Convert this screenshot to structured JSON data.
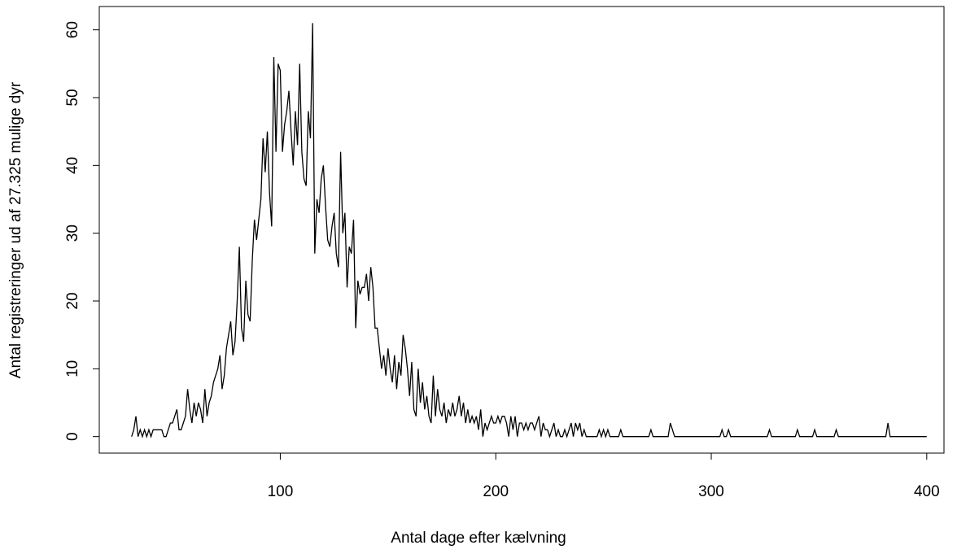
{
  "chart_data": {
    "type": "line",
    "xlabel": "Antal dage efter kælvning",
    "ylabel": "Antal registreringer ud af 27.325 mulige dyr",
    "color": "#000000",
    "xlim": [
      16,
      408
    ],
    "ylim": [
      -2.44,
      63.44
    ],
    "xticks": [
      100,
      200,
      300,
      400
    ],
    "yticks": [
      0,
      10,
      20,
      30,
      40,
      50,
      60
    ],
    "x": [
      31,
      32,
      33,
      34,
      35,
      36,
      37,
      38,
      39,
      40,
      41,
      42,
      43,
      44,
      45,
      46,
      47,
      48,
      49,
      50,
      51,
      52,
      53,
      54,
      55,
      56,
      57,
      58,
      59,
      60,
      61,
      62,
      63,
      64,
      65,
      66,
      67,
      68,
      69,
      70,
      71,
      72,
      73,
      74,
      75,
      76,
      77,
      78,
      79,
      80,
      81,
      82,
      83,
      84,
      85,
      86,
      87,
      88,
      89,
      90,
      91,
      92,
      93,
      94,
      95,
      96,
      97,
      98,
      99,
      100,
      101,
      102,
      103,
      104,
      105,
      106,
      107,
      108,
      109,
      110,
      111,
      112,
      113,
      114,
      115,
      116,
      117,
      118,
      119,
      120,
      121,
      122,
      123,
      124,
      125,
      126,
      127,
      128,
      129,
      130,
      131,
      132,
      133,
      134,
      135,
      136,
      137,
      138,
      139,
      140,
      141,
      142,
      143,
      144,
      145,
      146,
      147,
      148,
      149,
      150,
      151,
      152,
      153,
      154,
      155,
      156,
      157,
      158,
      159,
      160,
      161,
      162,
      163,
      164,
      165,
      166,
      167,
      168,
      169,
      170,
      171,
      172,
      173,
      174,
      175,
      176,
      177,
      178,
      179,
      180,
      181,
      182,
      183,
      184,
      185,
      186,
      187,
      188,
      189,
      190,
      191,
      192,
      193,
      194,
      195,
      196,
      197,
      198,
      199,
      200,
      201,
      202,
      203,
      204,
      205,
      206,
      207,
      208,
      209,
      210,
      211,
      212,
      213,
      214,
      215,
      216,
      217,
      218,
      219,
      220,
      221,
      222,
      223,
      224,
      225,
      226,
      227,
      228,
      229,
      230,
      231,
      232,
      233,
      234,
      235,
      236,
      237,
      238,
      239,
      240,
      241,
      242,
      243,
      244,
      245,
      246,
      247,
      248,
      249,
      250,
      251,
      252,
      253,
      254,
      255,
      256,
      257,
      258,
      259,
      260,
      271,
      272,
      273,
      280,
      281,
      282,
      283,
      304,
      305,
      306,
      307,
      308,
      309,
      326,
      327,
      328,
      339,
      340,
      341,
      347,
      348,
      349,
      357,
      358,
      359,
      381,
      382,
      383,
      400
    ],
    "values": [
      0,
      1,
      3,
      0,
      1,
      0,
      1,
      0,
      1,
      0,
      1,
      1,
      1,
      1,
      1,
      0,
      0,
      1,
      2,
      2,
      3,
      4,
      1,
      1,
      2,
      3,
      7,
      4,
      2,
      5,
      3,
      5,
      4,
      2,
      7,
      3,
      5,
      6,
      8,
      9,
      10,
      12,
      7,
      9,
      13,
      15,
      17,
      12,
      14,
      20,
      28,
      16,
      14,
      23,
      18,
      17,
      26,
      32,
      29,
      32,
      35,
      44,
      39,
      45,
      36,
      31,
      56,
      42,
      55,
      54,
      42,
      46,
      48,
      51,
      45,
      40,
      48,
      43,
      55,
      42,
      38,
      37,
      48,
      44,
      61,
      27,
      35,
      33,
      38,
      40,
      34,
      29,
      28,
      31,
      33,
      27,
      25,
      42,
      30,
      33,
      22,
      28,
      27,
      32,
      16,
      23,
      21,
      22,
      22,
      24,
      20,
      25,
      22,
      16,
      16,
      13,
      10,
      12,
      9,
      13,
      10,
      8,
      12,
      7,
      11,
      9,
      15,
      13,
      10,
      6,
      11,
      4,
      3,
      10,
      5,
      8,
      4,
      6,
      3,
      2,
      9,
      3,
      7,
      4,
      3,
      5,
      2,
      4,
      3,
      5,
      3,
      4,
      6,
      3,
      5,
      2,
      4,
      2,
      3,
      2,
      3,
      1,
      4,
      0,
      2,
      1,
      2,
      3,
      2,
      2,
      3,
      2,
      3,
      3,
      2,
      0,
      3,
      1,
      3,
      0,
      2,
      2,
      1,
      2,
      1,
      2,
      2,
      1,
      2,
      3,
      0,
      2,
      1,
      1,
      0,
      1,
      2,
      0,
      1,
      0,
      0,
      1,
      0,
      1,
      2,
      0,
      2,
      1,
      2,
      0,
      1,
      0,
      0,
      0,
      0,
      0,
      0,
      1,
      0,
      1,
      0,
      1,
      0,
      0,
      0,
      0,
      0,
      1,
      0,
      0,
      0,
      1,
      0,
      0,
      2,
      1,
      0,
      0,
      1,
      0,
      0,
      1,
      0,
      0,
      1,
      0,
      0,
      1,
      0,
      0,
      1,
      0,
      0,
      1,
      0,
      0,
      2,
      0,
      0
    ]
  }
}
